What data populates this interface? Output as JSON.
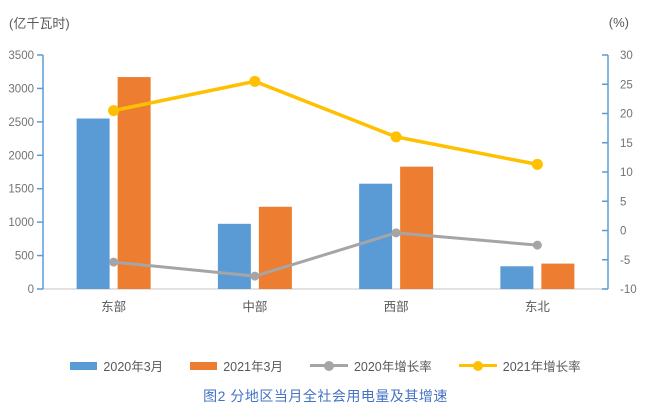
{
  "chart_data": {
    "type": "bar",
    "subtype": "combo-bar-line-dual-axis",
    "categories": [
      "东部",
      "中部",
      "西部",
      "东北"
    ],
    "bar_series": [
      {
        "name": "2020年3月",
        "color": "#5B9BD5",
        "axis": "left",
        "values": [
          2550,
          975,
          1575,
          340
        ]
      },
      {
        "name": "2021年3月",
        "color": "#ED7D31",
        "axis": "left",
        "values": [
          3170,
          1230,
          1830,
          380
        ]
      }
    ],
    "line_series": [
      {
        "name": "2020年增长率",
        "color": "#A5A5A5",
        "axis": "right",
        "values": [
          -5.4,
          -7.8,
          -0.4,
          -2.5
        ]
      },
      {
        "name": "2021年增长率",
        "color": "#FFC000",
        "axis": "right",
        "values": [
          20.5,
          25.5,
          16.0,
          11.3
        ]
      }
    ],
    "left_axis": {
      "title": "(亿千瓦时)",
      "min": 0,
      "max": 3500,
      "step": 500
    },
    "right_axis": {
      "title": "(%)",
      "min": -10,
      "max": 30,
      "step": 5
    },
    "grid": false,
    "legend_position": "bottom",
    "caption": "图2 分地区当月全社会用电量及其增速",
    "colors": {
      "axis_line": "#5B9BD5",
      "baseline": "#D9D9D9",
      "tick_label": "#737373",
      "category_label": "#595959",
      "axis_title": "#595959",
      "legend_text": "#595959",
      "caption": "#4472C4",
      "background": "#FFFFFF"
    }
  }
}
